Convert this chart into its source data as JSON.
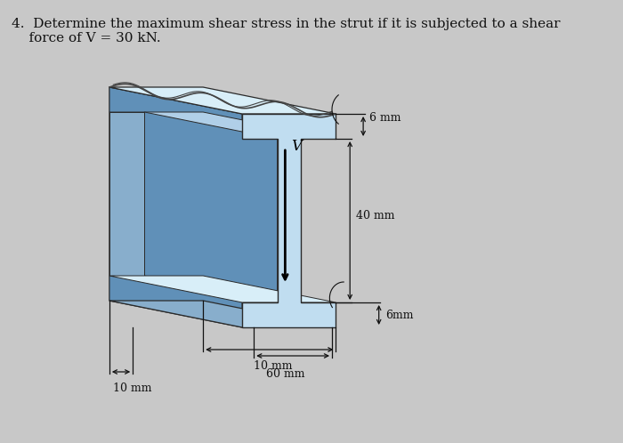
{
  "title_line1": "4.  Determine the maximum shear stress in the strut if it is subjected to a shear",
  "title_line2": "    force of V = 30 kN.",
  "title_fontsize": 11.0,
  "bg_color": "#c8c8c8",
  "face_light": "#a8cce0",
  "face_lighter": "#c0ddf0",
  "face_top": "#d8eef8",
  "face_dark": "#6090b8",
  "face_mid": "#88aecc",
  "face_side_right": "#90b8d0",
  "face_inner": "#b0cfe8",
  "edge_color": "#2a2a2a",
  "dim_color": "#111111",
  "V_label": "V",
  "dim_6mm_top": "6 mm",
  "dim_40mm": "40 mm",
  "dim_6mm_bot": "6mm",
  "dim_60mm": "60 mm",
  "dim_10mm_r": "10 mm",
  "dim_10mm_b": "10 mm"
}
